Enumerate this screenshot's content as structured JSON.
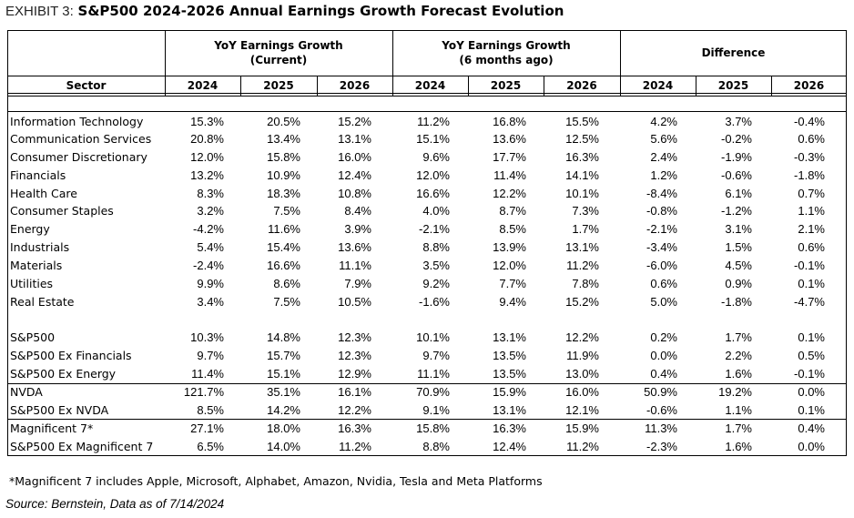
{
  "title": {
    "prefix": "EXHIBIT 3:",
    "main": "S&P500 2024-2026 Annual Earnings Growth Forecast Evolution"
  },
  "header": {
    "group_current_line1": "YoY Earnings Growth",
    "group_current_line2": "(Current)",
    "group_prior_line1": "YoY Earnings Growth",
    "group_prior_line2": "(6 months ago)",
    "group_diff": "Difference",
    "sector": "Sector",
    "years": [
      "2024",
      "2025",
      "2026",
      "2024",
      "2025",
      "2026",
      "2024",
      "2025",
      "2026"
    ]
  },
  "rows": [
    {
      "label": "Information Technology",
      "values": [
        "15.3%",
        "20.5%",
        "15.2%",
        "11.2%",
        "16.8%",
        "15.5%",
        "4.2%",
        "3.7%",
        "-0.4%"
      ]
    },
    {
      "label": "Communication Services",
      "values": [
        "20.8%",
        "13.4%",
        "13.1%",
        "15.1%",
        "13.6%",
        "12.5%",
        "5.6%",
        "-0.2%",
        "0.6%"
      ]
    },
    {
      "label": "Consumer Discretionary",
      "values": [
        "12.0%",
        "15.8%",
        "16.0%",
        "9.6%",
        "17.7%",
        "16.3%",
        "2.4%",
        "-1.9%",
        "-0.3%"
      ]
    },
    {
      "label": "Financials",
      "values": [
        "13.2%",
        "10.9%",
        "12.4%",
        "12.0%",
        "11.4%",
        "14.1%",
        "1.2%",
        "-0.6%",
        "-1.8%"
      ]
    },
    {
      "label": "Health Care",
      "values": [
        "8.3%",
        "18.3%",
        "10.8%",
        "16.6%",
        "12.2%",
        "10.1%",
        "-8.4%",
        "6.1%",
        "0.7%"
      ]
    },
    {
      "label": "Consumer Staples",
      "values": [
        "3.2%",
        "7.5%",
        "8.4%",
        "4.0%",
        "8.7%",
        "7.3%",
        "-0.8%",
        "-1.2%",
        "1.1%"
      ]
    },
    {
      "label": "Energy",
      "values": [
        "-4.2%",
        "11.6%",
        "3.9%",
        "-2.1%",
        "8.5%",
        "1.7%",
        "-2.1%",
        "3.1%",
        "2.1%"
      ]
    },
    {
      "label": "Industrials",
      "values": [
        "5.4%",
        "15.4%",
        "13.6%",
        "8.8%",
        "13.9%",
        "13.1%",
        "-3.4%",
        "1.5%",
        "0.6%"
      ]
    },
    {
      "label": "Materials",
      "values": [
        "-2.4%",
        "16.6%",
        "11.1%",
        "3.5%",
        "12.0%",
        "11.2%",
        "-6.0%",
        "4.5%",
        "-0.1%"
      ]
    },
    {
      "label": "Utilities",
      "values": [
        "9.9%",
        "8.6%",
        "7.9%",
        "9.2%",
        "7.7%",
        "7.8%",
        "0.6%",
        "0.9%",
        "0.1%"
      ]
    },
    {
      "label": "Real Estate",
      "values": [
        "3.4%",
        "7.5%",
        "10.5%",
        "-1.6%",
        "9.4%",
        "15.2%",
        "5.0%",
        "-1.8%",
        "-4.7%"
      ]
    },
    {
      "label": "S&P500",
      "values": [
        "10.3%",
        "14.8%",
        "12.3%",
        "10.1%",
        "13.1%",
        "12.2%",
        "0.2%",
        "1.7%",
        "0.1%"
      ]
    },
    {
      "label": "S&P500 Ex Financials",
      "values": [
        "9.7%",
        "15.7%",
        "12.3%",
        "9.7%",
        "13.5%",
        "11.9%",
        "0.0%",
        "2.2%",
        "0.5%"
      ]
    },
    {
      "label": "S&P500 Ex Energy",
      "values": [
        "11.4%",
        "15.1%",
        "12.9%",
        "11.1%",
        "13.5%",
        "13.0%",
        "0.4%",
        "1.6%",
        "-0.1%"
      ]
    },
    {
      "label": "NVDA",
      "values": [
        "121.7%",
        "35.1%",
        "16.1%",
        "70.9%",
        "15.9%",
        "16.0%",
        "50.9%",
        "19.2%",
        "0.0%"
      ]
    },
    {
      "label": "S&P500 Ex NVDA",
      "values": [
        "8.5%",
        "14.2%",
        "12.2%",
        "9.1%",
        "13.1%",
        "12.1%",
        "-0.6%",
        "1.1%",
        "0.1%"
      ]
    },
    {
      "label": "Magnificent 7*",
      "values": [
        "27.1%",
        "18.0%",
        "16.3%",
        "15.8%",
        "16.3%",
        "15.9%",
        "11.3%",
        "1.7%",
        "0.4%"
      ]
    },
    {
      "label": "S&P500 Ex Magnificent 7",
      "values": [
        "6.5%",
        "14.0%",
        "11.2%",
        "8.8%",
        "12.4%",
        "11.2%",
        "-2.3%",
        "1.6%",
        "0.0%"
      ]
    }
  ],
  "footnote": "*Magnificent 7 includes Apple, Microsoft, Alphabet, Amazon, Nvidia, Tesla and Meta Platforms",
  "source": "Source: Bernstein, Data as of 7/14/2024"
}
